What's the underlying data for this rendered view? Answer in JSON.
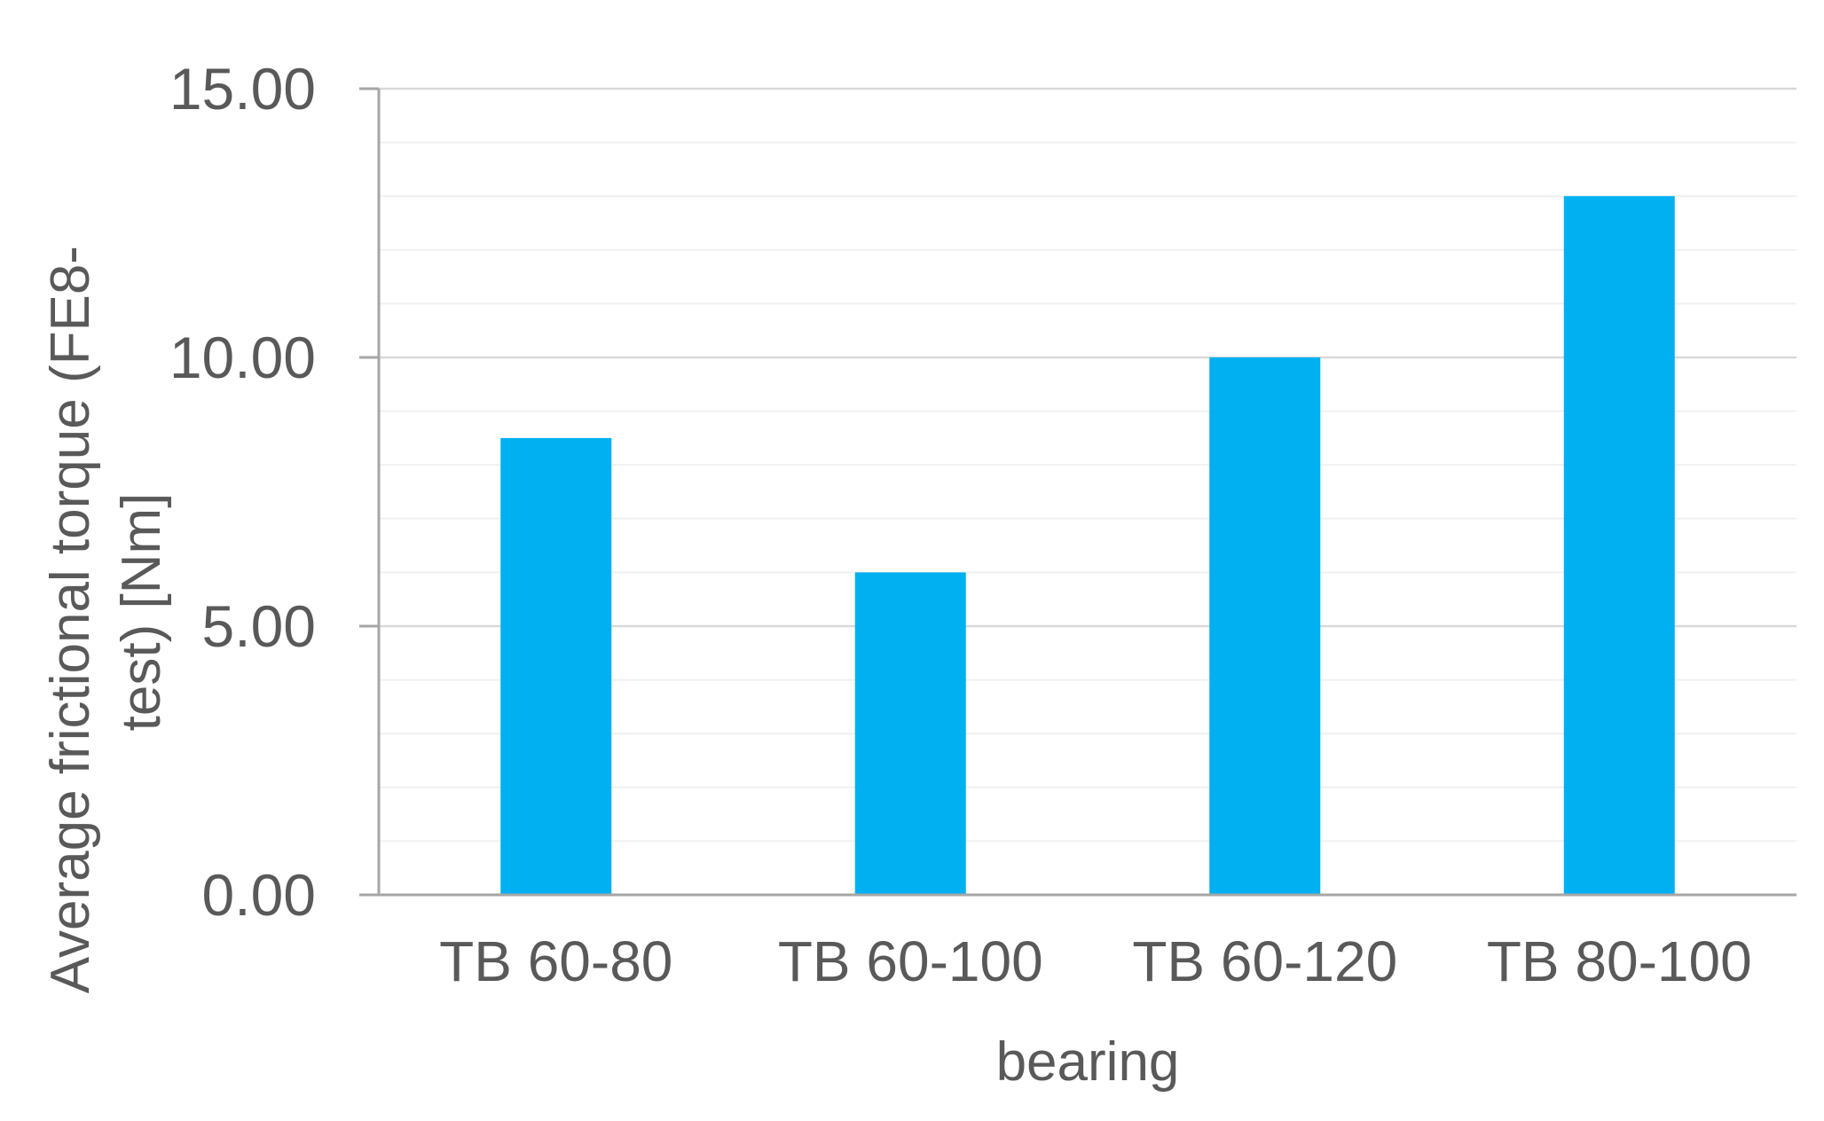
{
  "chart_data": {
    "type": "bar",
    "title": "",
    "categories": [
      "TB 60-80",
      "TB 60-100",
      "TB 60-120",
      "TB 80-100"
    ],
    "values": [
      8.5,
      6.0,
      10.0,
      13.0
    ],
    "xlabel": "bearing",
    "ylabel_lines": [
      "Average frictional torque  (FE8-",
      "test) [Nm]"
    ],
    "ylim": [
      0,
      15
    ],
    "yticks": [
      "0.00",
      "5.00",
      "10.00",
      "15.00"
    ],
    "ytick_values": [
      0,
      5,
      10,
      15
    ],
    "minor_step": 1,
    "grid": true,
    "legend": "none",
    "colors": {
      "bar": "#00B0F0",
      "major_grid": "#D9D9D9",
      "minor_grid": "#F0F0F0",
      "axis": "#A6A6A6",
      "text": "#595959"
    }
  }
}
